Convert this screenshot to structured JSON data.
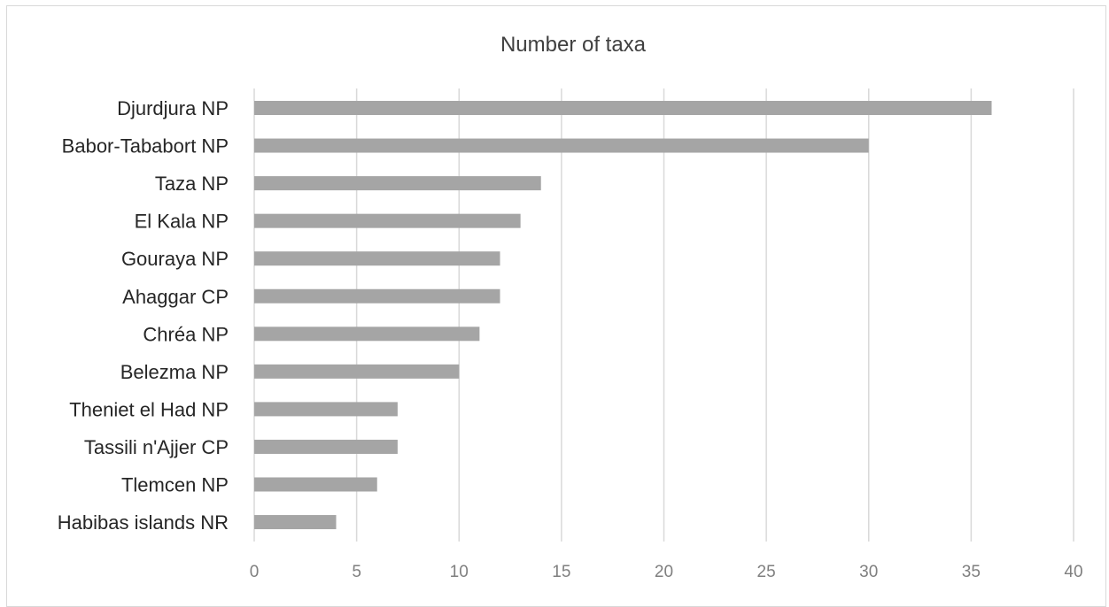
{
  "chart_data": {
    "type": "bar",
    "orientation": "horizontal",
    "title": "Number of taxa",
    "categories": [
      "Djurdjura NP",
      "Babor-Tababort NP",
      "Taza NP",
      "El Kala NP",
      "Gouraya NP",
      "Ahaggar CP",
      "Chréa NP",
      "Belezma NP",
      "Theniet el Had NP",
      "Tassili n'Ajjer CP",
      "Tlemcen NP",
      "Habibas islands NR"
    ],
    "values": [
      36,
      30,
      14,
      13,
      12,
      12,
      11,
      10,
      7,
      7,
      6,
      4
    ],
    "xlim": [
      0,
      40
    ],
    "xticks": [
      "0",
      "5",
      "10",
      "15",
      "20",
      "25",
      "30",
      "35",
      "40"
    ],
    "grid": true,
    "legend": "none",
    "colors": {
      "bar": "#a5a5a5",
      "grid": "#d9d9d9",
      "title": "#404040",
      "label": "#262626",
      "tick": "#7f7f7f"
    }
  }
}
